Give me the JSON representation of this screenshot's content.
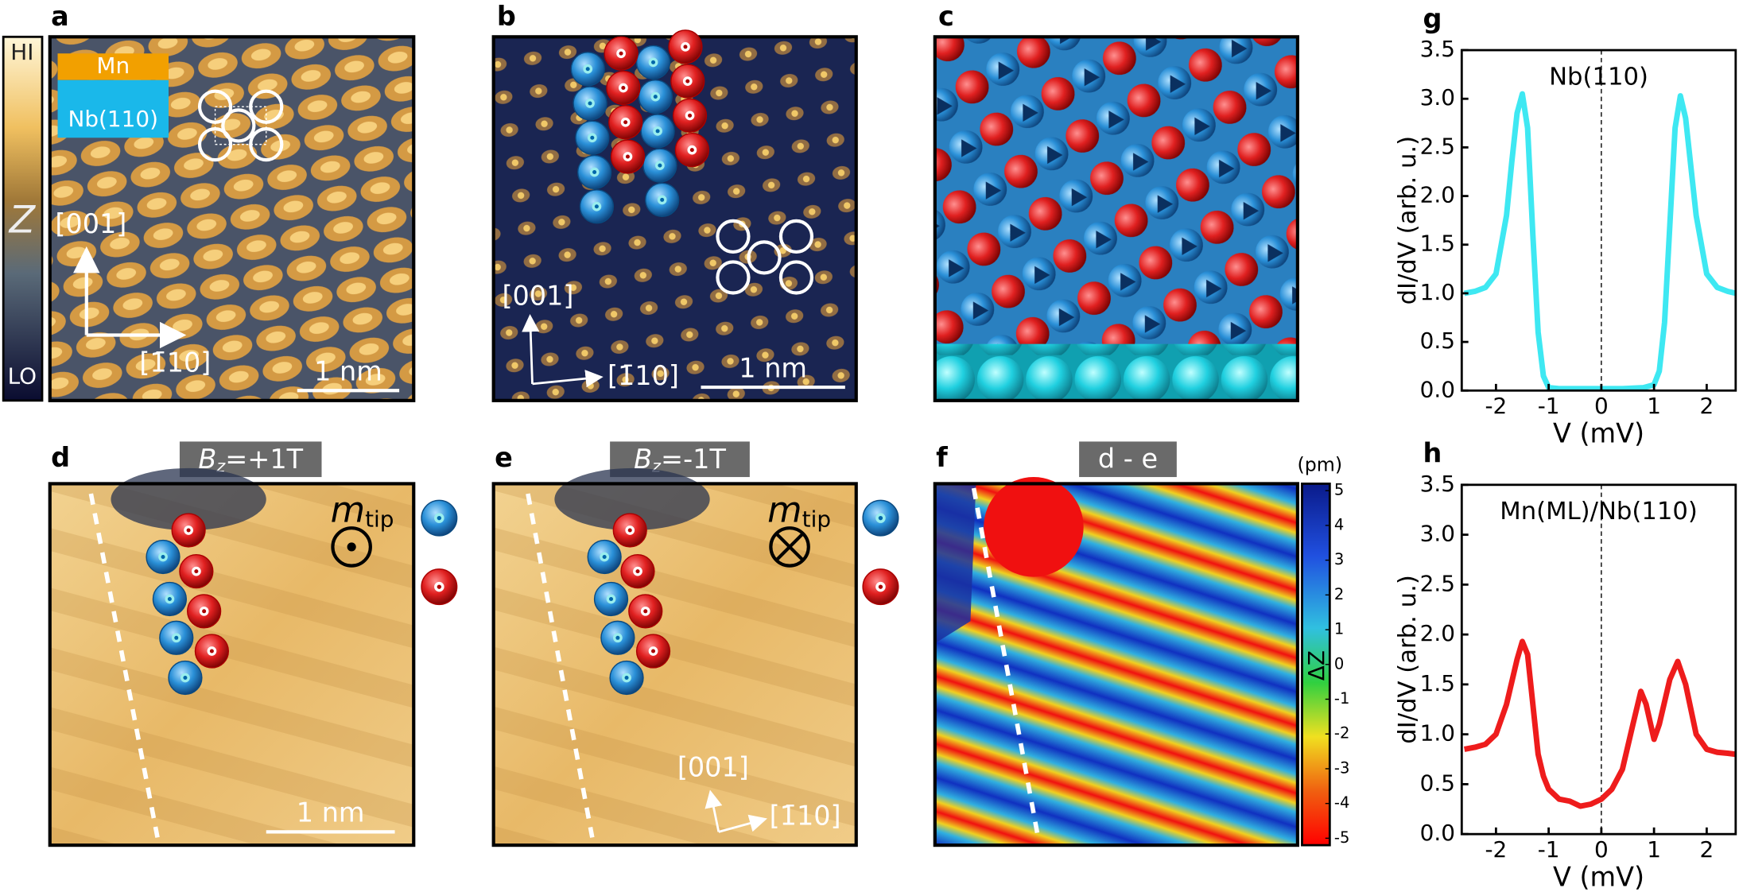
{
  "panels": {
    "a": {
      "label": "a",
      "colorbar": {
        "high": "HI",
        "symbol": "Z",
        "low": "LO"
      },
      "layers": [
        "Mn",
        "Nb(110)"
      ],
      "directions": [
        "[001]",
        "[1̄10]"
      ],
      "scale_bar": "1 nm"
    },
    "b": {
      "label": "b",
      "directions": [
        "[001]",
        "[1̄10]"
      ],
      "scale_bar": "1 nm"
    },
    "c": {
      "label": "c"
    },
    "d": {
      "label": "d",
      "field": {
        "symbol": "B",
        "subscript": "z",
        "value": "=+1T"
      },
      "moment": {
        "symbol": "m",
        "subscript": "tip"
      },
      "scale_bar": "1 nm"
    },
    "e": {
      "label": "e",
      "field": {
        "symbol": "B",
        "subscript": "z",
        "value": "=-1T"
      },
      "moment": {
        "symbol": "m",
        "subscript": "tip"
      },
      "directions": [
        "[001]",
        "[1̄10]"
      ]
    },
    "f": {
      "label": "f",
      "title": "d - e",
      "colorbar": {
        "unit": "(pm)",
        "symbol": "ΔZ",
        "lim": [
          -5.2,
          5.2
        ],
        "ticks": [
          5,
          4,
          3,
          2,
          1,
          0,
          -1,
          -2,
          -3,
          -4,
          -5
        ]
      }
    }
  },
  "chart_data": [
    {
      "type": "line",
      "label": "g",
      "annotation": "Nb(110)",
      "x_label": "V (mV)",
      "y_label": "dI/dV (arb. u.)",
      "x": [
        -2.6,
        -2.4,
        -2.2,
        -2.0,
        -1.8,
        -1.7,
        -1.6,
        -1.5,
        -1.4,
        -1.3,
        -1.2,
        -1.1,
        -1.0,
        -0.8,
        -0.4,
        0,
        0.4,
        0.8,
        1.0,
        1.1,
        1.2,
        1.3,
        1.4,
        1.5,
        1.6,
        1.7,
        1.8,
        2.0,
        2.2,
        2.4,
        2.55
      ],
      "values": [
        1.0,
        1.02,
        1.06,
        1.2,
        1.8,
        2.35,
        2.85,
        3.05,
        2.7,
        1.6,
        0.6,
        0.15,
        0.03,
        0.02,
        0.02,
        0.02,
        0.02,
        0.03,
        0.06,
        0.2,
        0.7,
        1.7,
        2.7,
        3.03,
        2.8,
        2.3,
        1.8,
        1.2,
        1.06,
        1.02,
        1.0
      ],
      "color": "#3ee8f2",
      "xlim": [
        -2.65,
        2.55
      ],
      "ylim": [
        0,
        3.5
      ],
      "xticks": [
        -2,
        -1,
        0,
        1,
        2
      ],
      "yticks": [
        {
          "value": 0,
          "label": "0.0"
        },
        0.5,
        {
          "value": 1,
          "label": "1.0"
        },
        1.5,
        {
          "value": 2,
          "label": "2.0"
        },
        2.5,
        {
          "value": 3,
          "label": "3.0"
        },
        3.5
      ]
    },
    {
      "type": "line",
      "label": "h",
      "annotation": "Mn(ML)/Nb(110)",
      "x_label": "V (mV)",
      "y_label": "dI/dV (arb. u.)",
      "x": [
        -2.6,
        -2.4,
        -2.2,
        -2.0,
        -1.8,
        -1.6,
        -1.5,
        -1.4,
        -1.3,
        -1.2,
        -1.1,
        -1.0,
        -0.8,
        -0.6,
        -0.4,
        -0.2,
        0,
        0.2,
        0.4,
        0.6,
        0.75,
        0.85,
        1.0,
        1.1,
        1.3,
        1.45,
        1.6,
        1.8,
        2.0,
        2.2,
        2.4,
        2.55
      ],
      "values": [
        0.85,
        0.87,
        0.9,
        1.0,
        1.3,
        1.75,
        1.93,
        1.8,
        1.3,
        0.8,
        0.58,
        0.45,
        0.35,
        0.33,
        0.28,
        0.3,
        0.35,
        0.45,
        0.65,
        1.1,
        1.43,
        1.3,
        0.95,
        1.1,
        1.55,
        1.73,
        1.5,
        1.0,
        0.85,
        0.82,
        0.81,
        0.8
      ],
      "color": "#ee1c1c",
      "xlim": [
        -2.65,
        2.55
      ],
      "ylim": [
        0,
        3.5
      ],
      "xticks": [
        -2,
        -1,
        0,
        1,
        2
      ],
      "yticks": [
        {
          "value": 0,
          "label": "0.0"
        },
        0.5,
        {
          "value": 1,
          "label": "1.0"
        },
        1.5,
        {
          "value": 2,
          "label": "2.0"
        },
        2.5,
        {
          "value": 3,
          "label": "3.0"
        },
        3.5
      ]
    }
  ]
}
